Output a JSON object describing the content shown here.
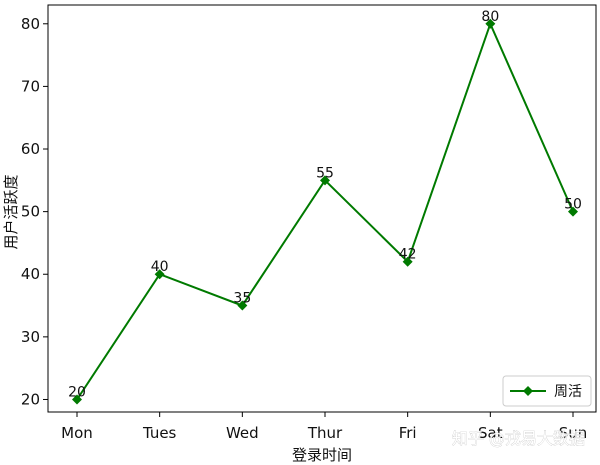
{
  "chart_data": {
    "type": "line",
    "categories": [
      "Mon",
      "Tues",
      "Wed",
      "Thur",
      "Fri",
      "Sat",
      "Sun"
    ],
    "series": [
      {
        "name": "周活",
        "values": [
          20,
          40,
          35,
          55,
          42,
          80,
          50
        ],
        "color": "#007a00",
        "marker": "diamond"
      }
    ],
    "data_labels": [
      "20",
      "40",
      "35",
      "55",
      "42",
      "80",
      "50"
    ],
    "title": "",
    "xlabel": "登录时间",
    "ylabel": "用户活跃度",
    "ylim": [
      18,
      83
    ],
    "yticks": [
      20,
      30,
      40,
      50,
      60,
      70,
      80
    ],
    "grid": false,
    "legend_position": "lower-right"
  },
  "watermark": "知乎 @戎易大数据"
}
